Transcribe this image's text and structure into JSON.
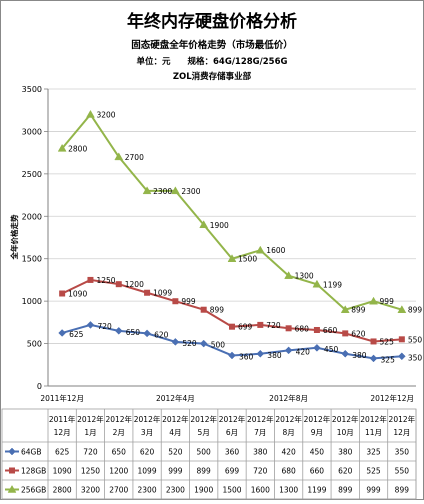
{
  "chart_data": {
    "type": "line",
    "title": "年终内存硬盘价格分析",
    "subtitle": "固态硬盘全年价格走势（市场最低价）",
    "unit_line": "单位：元　　规格：64G/128G/256G",
    "source_line": "ZOL消费存储事业部",
    "ylabel": "全年价格走势",
    "xlabel": "",
    "ylim": [
      0,
      3500
    ],
    "yticks": [
      "0",
      "500",
      "1000",
      "1500",
      "2000",
      "2500",
      "3000",
      "3500"
    ],
    "grid": true,
    "x_axis_labels": [
      "2011年12月",
      "2012年4月",
      "2012年8月",
      "2012年12月"
    ],
    "categories": [
      [
        "2011年",
        "12月"
      ],
      [
        "2012年",
        "1月"
      ],
      [
        "2012年",
        "2月"
      ],
      [
        "2012年",
        "3月"
      ],
      [
        "2012年",
        "4月"
      ],
      [
        "2012年",
        "5月"
      ],
      [
        "2012年",
        "6月"
      ],
      [
        "2012年",
        "7月"
      ],
      [
        "2012年",
        "8月"
      ],
      [
        "2012年",
        "9月"
      ],
      [
        "2012年",
        "10月"
      ],
      [
        "2012年",
        "11月"
      ],
      [
        "2012年",
        "12月"
      ]
    ],
    "series": [
      {
        "name": "64GB",
        "color": "#4a6fb3",
        "marker": "diamond",
        "values": [
          625,
          720,
          650,
          620,
          520,
          500,
          360,
          380,
          420,
          450,
          380,
          325,
          350
        ]
      },
      {
        "name": "128GB",
        "color": "#b84a47",
        "marker": "square",
        "values": [
          1090,
          1250,
          1200,
          1099,
          999,
          899,
          699,
          720,
          680,
          660,
          620,
          525,
          550
        ]
      },
      {
        "name": "256GB",
        "color": "#93b54a",
        "marker": "triangle",
        "values": [
          2800,
          3200,
          2700,
          2300,
          2300,
          1900,
          1500,
          1600,
          1300,
          1199,
          899,
          999,
          899
        ]
      }
    ]
  }
}
